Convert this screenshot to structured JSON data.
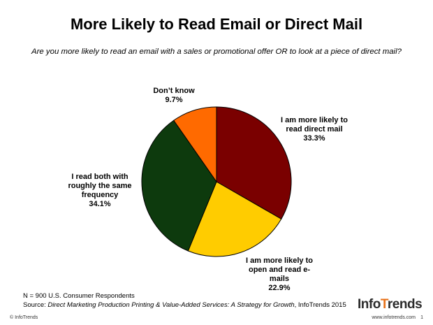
{
  "title": "More Likely to Read Email or Direct Mail",
  "subtitle": "Are you more likely to read an email with a sales or promotional offer OR to look at a piece of direct mail?",
  "chart_data": {
    "type": "pie",
    "start_angle_deg": 0,
    "direction": "clockwise",
    "slices": [
      {
        "label": "I am more likely to read direct mail",
        "value": 33.3,
        "value_label": "33.3%",
        "color": "#7a0000",
        "label_lines": [
          "I am more likely to",
          "read direct mail"
        ]
      },
      {
        "label": "I am more likely to open and read e-mails",
        "value": 22.9,
        "value_label": "22.9%",
        "color": "#ffcc00",
        "label_lines": [
          "I am more likely to",
          "open and read e-",
          "mails"
        ]
      },
      {
        "label": "I read both with roughly the same frequency",
        "value": 34.1,
        "value_label": "34.1%",
        "color": "#0d3a0d",
        "label_lines": [
          "I read both with",
          "roughly the same",
          "frequency"
        ]
      },
      {
        "label": "Don't know",
        "value": 9.7,
        "value_label": "9.7%",
        "color": "#ff6a00",
        "label_lines": [
          "Don’t know"
        ]
      }
    ]
  },
  "notes": {
    "respondents": "N = 900 U.S. Consumer Respondents",
    "source_prefix": "Source: ",
    "source_title": "Direct Marketing Production Printing & Value-Added Services: A Strategy for Growth",
    "source_suffix": ", InfoTrends 2015"
  },
  "footer": {
    "copyright": "© InfoTrends",
    "url": "www.infotrends.com",
    "page": "1"
  },
  "logo": {
    "text_a": "Info",
    "text_b": "rends"
  }
}
